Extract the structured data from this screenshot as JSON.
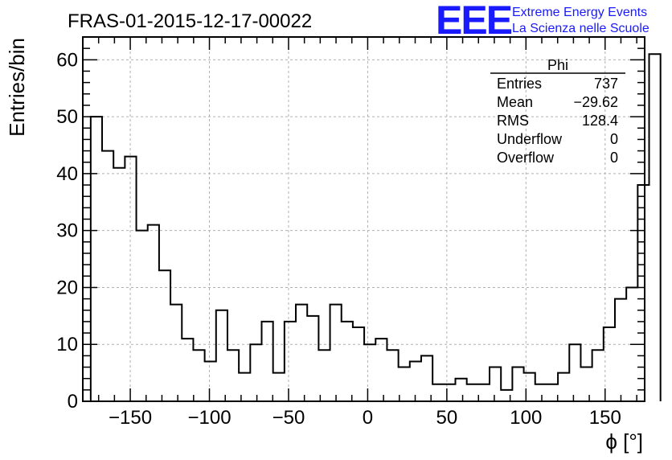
{
  "chart_data": {
    "type": "bar",
    "title": "FRAS-01-2015-12-17-00022",
    "xlabel": "ϕ [°]",
    "ylabel": "Entries/bin",
    "xlim": [
      -180,
      175
    ],
    "ylim": [
      0,
      64
    ],
    "bin_width": 7.2,
    "x_start": -175,
    "grid": true,
    "values": [
      50,
      44,
      41,
      43,
      30,
      31,
      23,
      17,
      11,
      9,
      7,
      16,
      9,
      5,
      10,
      14,
      5,
      14,
      17,
      15,
      9,
      17,
      14,
      13,
      10,
      11,
      9,
      6,
      7,
      8,
      3,
      3,
      4,
      3,
      3,
      6,
      2,
      6,
      5,
      3,
      3,
      5,
      10,
      6,
      9,
      13,
      18,
      20,
      38,
      61
    ],
    "x_ticks": [
      -150,
      -100,
      -50,
      0,
      50,
      100,
      150
    ],
    "x_tick_labels": [
      "−150",
      "−100",
      "−50",
      "0",
      "50",
      "100",
      "150"
    ],
    "y_ticks": [
      0,
      10,
      20,
      30,
      40,
      50,
      60
    ],
    "y_tick_labels": [
      "0",
      "10",
      "20",
      "30",
      "40",
      "50",
      "60"
    ],
    "stats": {
      "title": "Phi",
      "rows": [
        {
          "label": "Entries",
          "value": "737"
        },
        {
          "label": "Mean",
          "value": "−29.62"
        },
        {
          "label": "RMS",
          "value": "128.4"
        },
        {
          "label": "Underflow",
          "value": "0"
        },
        {
          "label": "Overflow",
          "value": "0"
        }
      ]
    }
  },
  "logo": {
    "big": "EEE",
    "line1": "Extreme Energy Events",
    "line2": "La Scienza nelle Scuole"
  },
  "colors": {
    "logo": "#1a1aff",
    "line": "#000000",
    "grid": "#b0b0b0"
  }
}
